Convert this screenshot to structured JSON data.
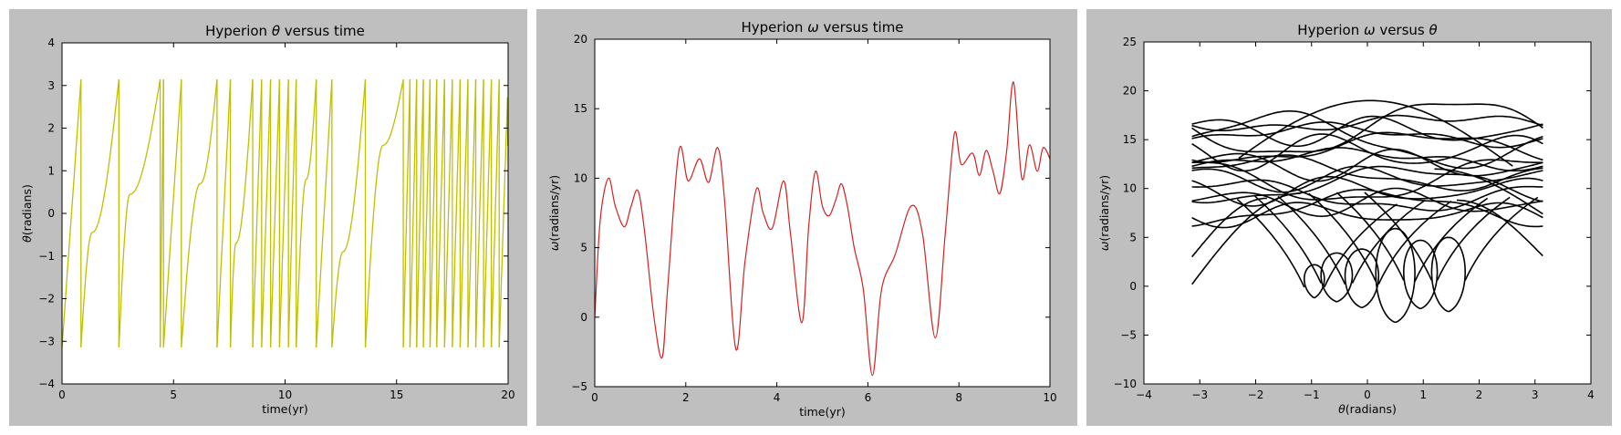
{
  "chart_data": [
    {
      "type": "line",
      "title": "Hyperion θ versus time",
      "title_parts": [
        "Hyperion ",
        "θ",
        " versus time"
      ],
      "xlabel": "time(yr)",
      "ylabel_parts": [
        "θ",
        "(radians)"
      ],
      "xlim": [
        0,
        20
      ],
      "ylim": [
        -4,
        4
      ],
      "xticks": [
        "0",
        "5",
        "10",
        "15",
        "20"
      ],
      "yticks": [
        "−4",
        "−3",
        "−2",
        "−1",
        "0",
        "1",
        "2",
        "3",
        "4"
      ],
      "grid": false,
      "color": "#bfbf00",
      "trend": "θ wraps between −π and π; plateaus near −0.5 (t≈1.4), 0.5 (t≈3.0), 0.7 (t≈6.2), −0.7 (t≈7.6), 0.8 (t≈10.9), −0.9 (t≈12.6), 1.6 (t≈14.4)"
    },
    {
      "type": "line",
      "title": "Hyperion ω versus time",
      "title_parts": [
        "Hyperion ",
        "ω",
        " versus time"
      ],
      "xlabel": "time(yr)",
      "ylabel_parts": [
        "ω",
        "(radians/yr)"
      ],
      "xlim": [
        0,
        10
      ],
      "ylim": [
        -5,
        20
      ],
      "xticks": [
        "0",
        "2",
        "4",
        "6",
        "8",
        "10"
      ],
      "yticks": [
        "−5",
        "0",
        "5",
        "10",
        "15",
        "20"
      ],
      "grid": false,
      "color": "#d62020",
      "x": [
        0,
        0.12,
        0.3,
        0.45,
        0.65,
        0.8,
        0.95,
        1.1,
        1.3,
        1.48,
        1.6,
        1.85,
        2.05,
        2.3,
        2.5,
        2.7,
        2.85,
        3.1,
        3.3,
        3.55,
        3.7,
        3.9,
        4.15,
        4.3,
        4.55,
        4.7,
        4.85,
        5.0,
        5.15,
        5.3,
        5.42,
        5.55,
        5.7,
        5.9,
        6.1,
        6.3,
        6.6,
        6.95,
        7.2,
        7.48,
        7.7,
        7.9,
        8.05,
        8.3,
        8.45,
        8.6,
        8.75,
        8.9,
        9.05,
        9.2,
        9.38,
        9.55,
        9.72,
        9.85,
        10.0
      ],
      "y": [
        0,
        7,
        10,
        8,
        6.5,
        8,
        9.1,
        6,
        0,
        -2.9,
        2,
        12,
        9.8,
        11.4,
        9.7,
        12.2,
        8.5,
        -2.3,
        4,
        9.2,
        7.5,
        6.4,
        9.8,
        6,
        -0.4,
        6.5,
        10.5,
        8,
        7.3,
        8.5,
        9.6,
        8,
        5,
        2,
        -4.2,
        2,
        4.5,
        8,
        6,
        -1.5,
        6,
        13.2,
        11,
        11.8,
        10.2,
        12,
        10.5,
        8.9,
        12,
        16.9,
        10,
        12.4,
        10.5,
        12.2,
        11.4
      ]
    },
    {
      "type": "scatter",
      "title": "Hyperion ω versus θ",
      "title_parts": [
        "Hyperion ",
        "ω",
        " versus ",
        "θ"
      ],
      "xlabel_parts": [
        "θ",
        "(radians)"
      ],
      "ylabel_parts": [
        "ω",
        "(radians/yr)"
      ],
      "xlim": [
        -4,
        4
      ],
      "ylim": [
        -10,
        25
      ],
      "xticks": [
        "−4",
        "−3",
        "−2",
        "−1",
        "0",
        "1",
        "2",
        "3",
        "4"
      ],
      "yticks": [
        "−10",
        "−5",
        "0",
        "5",
        "10",
        "15",
        "20",
        "25"
      ],
      "grid": false,
      "color": "#000000",
      "trend": "phase-space trajectory: wavy bands for ω between about 2.5 and 19 spanning θ from −π to π, plus loops dipping to ω≈−4 near θ in [−1, 1.7]"
    }
  ]
}
